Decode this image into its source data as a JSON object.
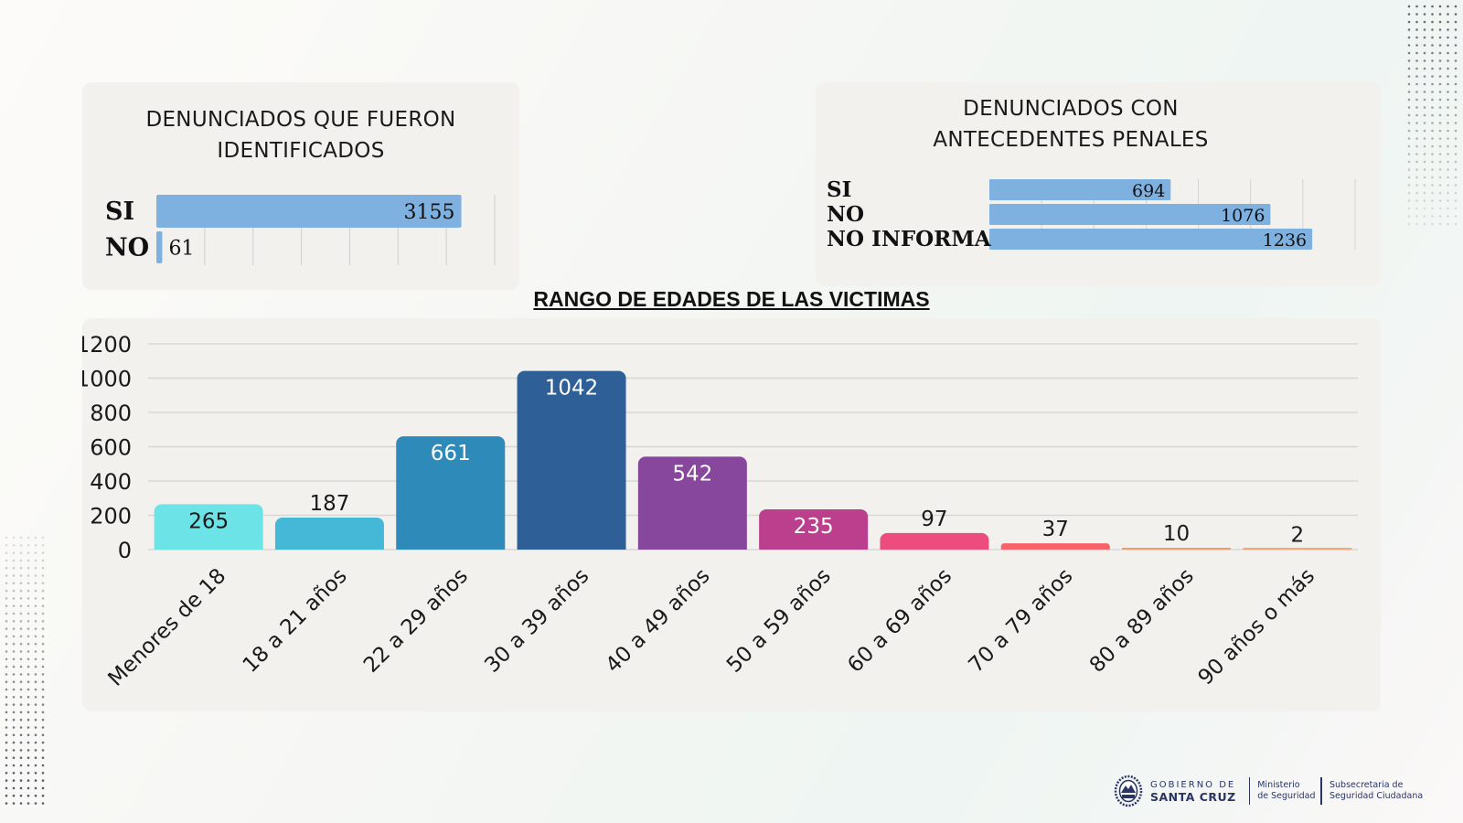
{
  "chart_data": [
    {
      "type": "bar",
      "orientation": "horizontal",
      "title": "DENUNCIADOS QUE FUERON IDENTIFICADOS",
      "title_lines": [
        "DENUNCIADOS QUE FUERON",
        "IDENTIFICADOS"
      ],
      "categories": [
        "SI",
        "NO"
      ],
      "values": [
        3155,
        61
      ],
      "xlim": [
        0,
        3500
      ],
      "grid": true,
      "bar_color": "#7eb0e0"
    },
    {
      "type": "bar",
      "orientation": "horizontal",
      "title": "DENUNCIADOS CON ANTECEDENTES PENALES",
      "title_lines": [
        "DENUNCIADOS CON",
        "ANTECEDENTES PENALES"
      ],
      "categories": [
        "SI",
        "NO",
        "NO INFORMA"
      ],
      "values": [
        694,
        1076,
        1236
      ],
      "xlim": [
        0,
        1400
      ],
      "grid": true,
      "bar_color": "#7eb0e0"
    },
    {
      "type": "bar",
      "orientation": "vertical",
      "title": "RANGO DE EDADES DE LAS VICTIMAS",
      "categories": [
        "Menores de 18",
        "18 a 21 años",
        "22 a 29 años",
        "30 a 39 años",
        "40 a 49 años",
        "50 a 59 años",
        "60 a 69 años",
        "70 a 79 años",
        "80 a 89 años",
        "90 años o más"
      ],
      "values": [
        265,
        187,
        661,
        1042,
        542,
        235,
        97,
        37,
        10,
        2
      ],
      "colors": [
        "#6ce3e6",
        "#45b8d8",
        "#2e8ab8",
        "#2e5f97",
        "#86479c",
        "#bb3f8c",
        "#ec4d7e",
        "#f8636a",
        "#f39a6d",
        "#f3a77a"
      ],
      "label_colors": [
        "#1a1a1a",
        "#1a1a1a",
        "#ffffff",
        "#ffffff",
        "#ffffff",
        "#ffffff",
        "#1a1a1a",
        "#1a1a1a",
        "#1a1a1a",
        "#1a1a1a"
      ],
      "yticks": [
        0,
        200,
        400,
        600,
        800,
        1000,
        1200
      ],
      "ylim": [
        0,
        1200
      ],
      "grid": true,
      "xlabel": "",
      "ylabel": ""
    }
  ],
  "footer": {
    "org_line1": "GOBIERNO DE",
    "org_line2": "SANTA CRUZ",
    "ministry_line1": "Ministerio",
    "ministry_line2": "de Seguridad",
    "sub_line1": "Subsecretaria de",
    "sub_line2": "Seguridad Ciudadana",
    "logo_icon": "provincial-coat-of-arms-icon"
  }
}
